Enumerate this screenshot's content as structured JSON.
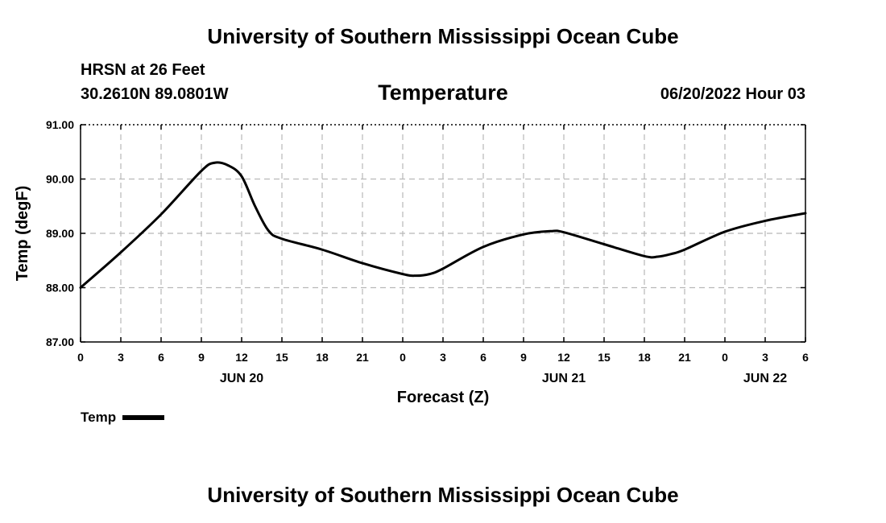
{
  "header": {
    "title": "University of Southern Mississippi Ocean Cube",
    "station": "HRSN at 26 Feet",
    "coords": "30.2610N  89.0801W",
    "variable": "Temperature",
    "run": "06/20/2022 Hour 03"
  },
  "footer": {
    "title": "University of Southern Mississippi Ocean Cube"
  },
  "legend": {
    "label": "Temp",
    "color": "#000000"
  },
  "chart_data": {
    "type": "line",
    "xlabel": "Forecast (Z)",
    "ylabel": "Temp (degF)",
    "xlim": [
      0,
      54
    ],
    "ylim": [
      87.0,
      91.0
    ],
    "x_ticks": [
      0,
      3,
      6,
      9,
      12,
      15,
      18,
      21,
      24,
      27,
      30,
      33,
      36,
      39,
      42,
      45,
      48,
      51,
      54
    ],
    "x_tick_labels": [
      "0",
      "3",
      "6",
      "9",
      "12",
      "15",
      "18",
      "21",
      "0",
      "3",
      "6",
      "9",
      "12",
      "15",
      "18",
      "21",
      "0",
      "3",
      "6"
    ],
    "y_ticks": [
      87.0,
      88.0,
      89.0,
      90.0,
      91.0
    ],
    "y_tick_labels": [
      "87.00",
      "88.00",
      "89.00",
      "90.00",
      "91.00"
    ],
    "day_labels": [
      {
        "x": 12,
        "label": "JUN 20"
      },
      {
        "x": 36,
        "label": "JUN 21"
      },
      {
        "x": 51,
        "label": "JUN 22"
      }
    ],
    "grid": true,
    "series": [
      {
        "name": "Temp",
        "color": "#000000",
        "x": [
          0,
          3,
          6,
          9,
          10,
          11,
          12,
          13,
          14,
          15,
          18,
          21,
          24,
          25,
          26,
          27,
          30,
          33,
          35,
          36,
          39,
          42,
          43,
          44,
          45,
          48,
          51,
          54
        ],
        "y": [
          88.0,
          88.65,
          89.35,
          90.15,
          90.3,
          90.25,
          90.05,
          89.5,
          89.05,
          88.9,
          88.7,
          88.45,
          88.25,
          88.22,
          88.25,
          88.35,
          88.75,
          88.98,
          89.04,
          89.02,
          88.8,
          88.58,
          88.57,
          88.62,
          88.7,
          89.03,
          89.23,
          89.37
        ]
      }
    ]
  }
}
